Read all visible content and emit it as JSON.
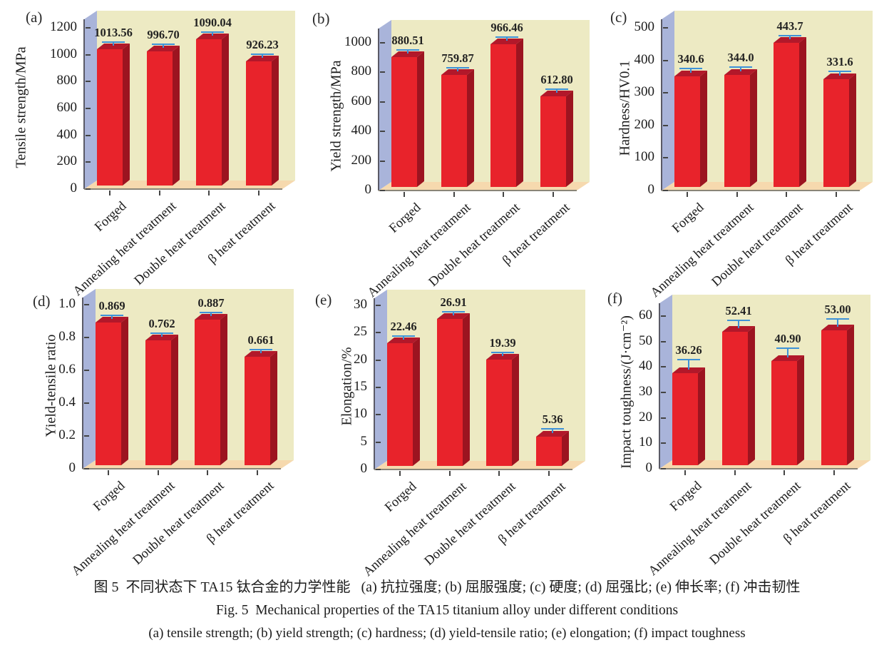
{
  "figure": {
    "caption_zh": "图 5  不同状态下 TA15 钛合金的力学性能   (a) 抗拉强度; (b) 屈服强度; (c) 硬度; (d) 屈强比; (e) 伸长率; (f) 冲击韧性",
    "caption_en": "Fig. 5  Mechanical properties of the TA15 titanium alloy under different conditions",
    "caption_panels_en": "(a) tensile strength; (b) yield strength; (c) hardness; (d) yield-tensile ratio; (e) elongation; (f) impact toughness"
  },
  "colors": {
    "bar_front": "#e8232b",
    "bar_top": "#b2182a",
    "bar_side": "#9c1420",
    "wall": "#a9b4da",
    "back_wall": "#edeac3",
    "floor": "#f6d9ae",
    "error_bar": "#3e92d8",
    "y_axis_line": "#5a5a66",
    "x_axis_line": "#8a8578",
    "tick_mark": "#444444",
    "text": "#1c1c1c"
  },
  "chart_data": [
    {
      "id": "a",
      "type": "bar",
      "bar_style": "3d",
      "grid": false,
      "panel_label": "(a)",
      "ylabel": "Tensile strength/MPa",
      "categories": [
        "Forged",
        "Annealing heat treatment",
        "Double heat treatment",
        "β heat treatment"
      ],
      "values": [
        1013.56,
        996.7,
        1090.04,
        926.23
      ],
      "value_labels": [
        "1013.56",
        "996.70",
        "1090.04",
        "926.23"
      ],
      "errors_est": [
        10,
        10,
        10,
        10
      ],
      "tick_values": [
        0,
        200,
        400,
        600,
        800,
        1000,
        1200
      ],
      "tick_labels": [
        "0",
        "200",
        "400",
        "600",
        "800",
        "1000",
        "1200"
      ],
      "ylim": [
        0,
        1200
      ]
    },
    {
      "id": "b",
      "type": "bar",
      "bar_style": "3d",
      "grid": false,
      "panel_label": "(b)",
      "ylabel": "Yield strength/MPa",
      "categories": [
        "Forged",
        "Annealing heat treatment",
        "Double heat treatment",
        "β heat treatment"
      ],
      "values": [
        880.51,
        759.87,
        966.46,
        612.8
      ],
      "value_labels": [
        "880.51",
        "759.87",
        "966.46",
        "612.80"
      ],
      "errors_est": [
        10,
        10,
        10,
        12
      ],
      "tick_values": [
        0,
        200,
        400,
        600,
        800,
        1000
      ],
      "tick_labels": [
        "0",
        "200",
        "400",
        "600",
        "800",
        "1000"
      ],
      "ylim": [
        0,
        1000
      ]
    },
    {
      "id": "c",
      "type": "bar",
      "bar_style": "3d",
      "grid": false,
      "panel_label": "(c)",
      "ylabel": "Hardness/HV0.1",
      "categories": [
        "Forged",
        "Annealing heat treatment",
        "Double heat treatment",
        "β heat treatment"
      ],
      "values": [
        340.6,
        344.0,
        443.7,
        331.6
      ],
      "value_labels": [
        "340.6",
        "344.0",
        "443.7",
        "331.6"
      ],
      "errors_est": [
        6,
        6,
        4,
        6
      ],
      "tick_values": [
        0,
        100,
        200,
        300,
        400,
        500
      ],
      "tick_labels": [
        "0",
        "100",
        "200",
        "300",
        "400",
        "500"
      ],
      "ylim": [
        0,
        500
      ]
    },
    {
      "id": "d",
      "type": "bar",
      "bar_style": "3d",
      "grid": false,
      "panel_label": "(d)",
      "ylabel": "Yield-tensile ratio",
      "categories": [
        "Forged",
        "Annealing heat treatment",
        "Double heat treatment",
        "β heat treatment"
      ],
      "values": [
        0.869,
        0.762,
        0.887,
        0.661
      ],
      "value_labels": [
        "0.869",
        "0.762",
        "0.887",
        "0.661"
      ],
      "errors_est": [
        0.008,
        0.008,
        0.008,
        0.01
      ],
      "tick_values": [
        0,
        0.2,
        0.4,
        0.6,
        0.8,
        1.0
      ],
      "tick_labels": [
        "0",
        "0.2",
        "0.4",
        "0.6",
        "0.8",
        "1.0"
      ],
      "ylim": [
        0,
        1.0
      ]
    },
    {
      "id": "e",
      "type": "bar",
      "bar_style": "3d",
      "grid": false,
      "panel_label": "(e)",
      "ylabel": "Elongation/%",
      "categories": [
        "Forged",
        "Annealing heat treatment",
        "Double heat treatment",
        "β heat treatment"
      ],
      "values": [
        22.46,
        26.91,
        19.39,
        5.36
      ],
      "value_labels": [
        "22.46",
        "26.91",
        "19.39",
        "5.36"
      ],
      "errors_est": [
        0.3,
        0.3,
        0.3,
        0.4
      ],
      "tick_values": [
        0,
        5,
        10,
        15,
        20,
        25,
        30
      ],
      "tick_labels": [
        "0",
        "5",
        "10",
        "15",
        "20",
        "25",
        "30"
      ],
      "ylim": [
        0,
        30
      ]
    },
    {
      "id": "f",
      "type": "bar",
      "bar_style": "3d",
      "grid": false,
      "panel_label": "(f)",
      "ylabel": "Impact toughness/(J·cm⁻²)",
      "categories": [
        "Forged",
        "Annealing heat treatment",
        "Double heat treatment",
        "β heat treatment"
      ],
      "values": [
        36.26,
        52.41,
        40.9,
        53.0
      ],
      "value_labels": [
        "36.26",
        "52.41",
        "40.90",
        "53.00"
      ],
      "errors_est": [
        3.0,
        2.2,
        2.8,
        2.2
      ],
      "tick_values": [
        0,
        10,
        20,
        30,
        40,
        50,
        60
      ],
      "tick_labels": [
        "0",
        "10",
        "20",
        "30",
        "40",
        "50",
        "60"
      ],
      "ylim": [
        0,
        60
      ]
    }
  ]
}
